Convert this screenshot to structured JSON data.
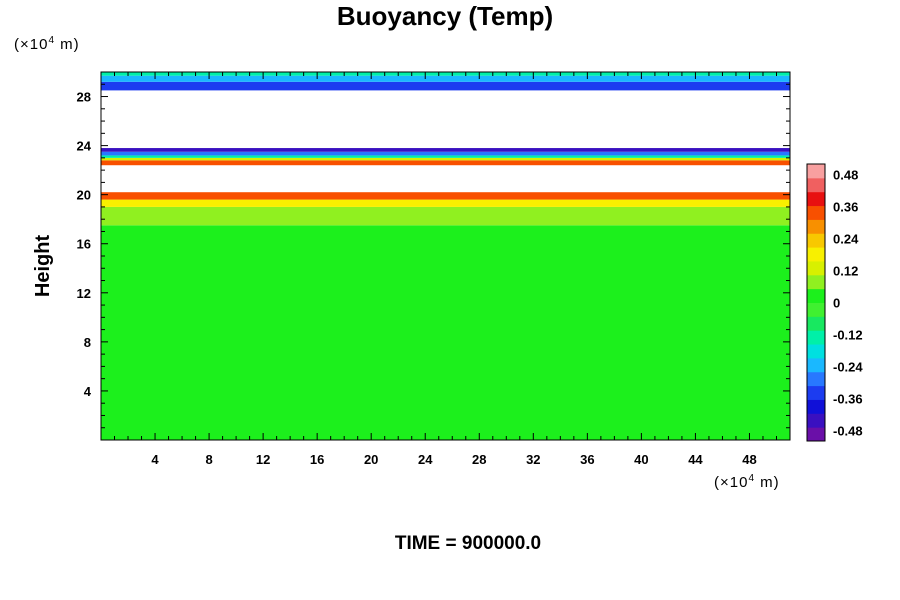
{
  "chart_data": {
    "type": "heatmap",
    "title": "Buoyancy (Temp)",
    "ylabel": "Height",
    "x_unit_prefix": "(×10",
    "x_unit_exp": "4",
    "x_unit_suffix": " m)",
    "y_unit_prefix": "(×10",
    "y_unit_exp": "4",
    "y_unit_suffix": " m)",
    "xlim": [
      0,
      51
    ],
    "ylim": [
      0,
      30
    ],
    "x_ticks": [
      4,
      8,
      12,
      16,
      20,
      24,
      28,
      32,
      36,
      40,
      44,
      48
    ],
    "y_ticks": [
      4,
      8,
      12,
      16,
      20,
      24,
      28
    ],
    "colorbar": {
      "range": [
        -0.52,
        0.52
      ],
      "ticks": [
        0.48,
        0.36,
        0.24,
        0.12,
        0,
        -0.12,
        -0.24,
        -0.36,
        -0.48
      ],
      "tick_labels": [
        "0.48",
        "0.36",
        "0.24",
        "0.12",
        "0",
        "-0.12",
        "-0.24",
        "-0.36",
        "-0.48"
      ],
      "colors": [
        "#6a0fa8",
        "#3a10c0",
        "#1010d8",
        "#1c3cf0",
        "#2878ff",
        "#1ab8ff",
        "#00e0e0",
        "#00f0a8",
        "#18e860",
        "#40f030",
        "#1cf01c",
        "#90f020",
        "#d8f000",
        "#f8f000",
        "#f8c800",
        "#f89000",
        "#f85000",
        "#e81010",
        "#f06060",
        "#f8a0a0"
      ]
    },
    "layers": [
      {
        "y0": 0,
        "y1": 17.5,
        "value": 0.0
      },
      {
        "y0": 17.5,
        "y1": 19.0,
        "value": 0.06
      },
      {
        "y0": 19.0,
        "y1": 19.6,
        "value": 0.18
      },
      {
        "y0": 19.6,
        "y1": 20.2,
        "value": 0.36
      },
      {
        "y0": 22.4,
        "y1": 22.8,
        "value": 0.36
      },
      {
        "y0": 22.8,
        "y1": 23.0,
        "value": 0.12
      },
      {
        "y0": 23.0,
        "y1": 23.2,
        "value": -0.12
      },
      {
        "y0": 23.2,
        "y1": 23.5,
        "value": -0.3
      },
      {
        "y0": 23.5,
        "y1": 23.8,
        "value": -0.42
      },
      {
        "y0": 28.5,
        "y1": 29.2,
        "value": -0.36
      },
      {
        "y0": 29.2,
        "y1": 29.7,
        "value": -0.24
      },
      {
        "y0": 29.7,
        "y1": 30.0,
        "value": -0.12
      }
    ],
    "time_label": "TIME = 900000.0"
  }
}
